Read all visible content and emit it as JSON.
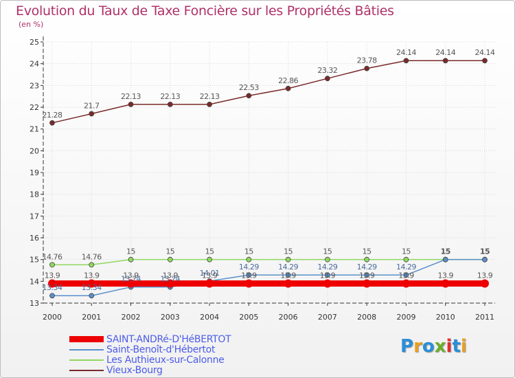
{
  "title": "Evolution du Taux de Taxe Foncière sur les Propriétés Bâties",
  "subtitle": "(en %)",
  "logo": {
    "text": "Proxiti",
    "colors": [
      "#2a8fd8",
      "#e8a020",
      "#2a8fd8",
      "#6ab02a",
      "#e03030",
      "#2a8fd8",
      "#e8a020"
    ]
  },
  "chart_data": {
    "type": "line",
    "title": "Evolution du Taux de Taxe Foncière sur les Propriétés Bâties",
    "ylabel": "(en %)",
    "ylim": [
      13,
      25
    ],
    "yticks": [
      "13",
      "14",
      "15",
      "16",
      "17",
      "18",
      "19",
      "20",
      "21",
      "22",
      "23",
      "24",
      "25"
    ],
    "categories": [
      "2000",
      "2001",
      "2002",
      "2003",
      "2004",
      "2005",
      "2006",
      "2007",
      "2008",
      "2009",
      "2010",
      "2011"
    ],
    "series": [
      {
        "name": "Vieux-Bourg",
        "color": "#7a2a2a",
        "values": [
          21.28,
          21.7,
          22.13,
          22.13,
          22.13,
          22.53,
          22.86,
          23.32,
          23.78,
          24.14,
          24.14,
          24.14
        ],
        "labels": [
          "21.28",
          "21.7",
          "22.13",
          "22.13",
          "22.13",
          "22.53",
          "22.86",
          "23.32",
          "23.78",
          "24.14",
          "24.14",
          "24.14"
        ]
      },
      {
        "name": "Les Authieux-sur-Calonne",
        "color": "#8fd860",
        "values": [
          14.76,
          14.76,
          15,
          15,
          15,
          15,
          15,
          15,
          15,
          15,
          15,
          15
        ],
        "labels": [
          "14.76",
          "14.76",
          "15",
          "15",
          "15",
          "15",
          "15",
          "15",
          "15",
          "15",
          "15",
          "15"
        ]
      },
      {
        "name": "Saint-Benoît-d'Hébertot",
        "color": "#5a8fc8",
        "values": [
          13.34,
          13.34,
          13.74,
          13.74,
          14.01,
          14.29,
          14.29,
          14.29,
          14.29,
          14.29,
          15,
          15
        ],
        "labels": [
          "13.34",
          "13.34",
          "13.74",
          "13.74",
          "14.01",
          "14.29",
          "14.29",
          "14.29",
          "14.29",
          "14.29",
          "",
          ""
        ]
      },
      {
        "name": "SAINT-ANDRé-D'HéBERTOT",
        "color": "#ee0000",
        "values": [
          13.9,
          13.9,
          13.9,
          13.9,
          13.9,
          13.9,
          13.9,
          13.9,
          13.9,
          13.9,
          13.9,
          13.9
        ],
        "labels": [
          "13.9",
          "13.9",
          "13.9",
          "13.9",
          "13.9",
          "13.9",
          "13.9",
          "13.9",
          "13.9",
          "13.9",
          "13.9",
          "13.9"
        ]
      }
    ],
    "legend": [
      {
        "name": "SAINT-ANDRé-D'HéBERTOT",
        "color": "#ee0000"
      },
      {
        "name": "Saint-Benoît-d'Hébertot",
        "color": "#5a8fc8"
      },
      {
        "name": "Les Authieux-sur-Calonne",
        "color": "#8fd860"
      },
      {
        "name": "Vieux-Bourg",
        "color": "#7a2a2a"
      }
    ]
  }
}
